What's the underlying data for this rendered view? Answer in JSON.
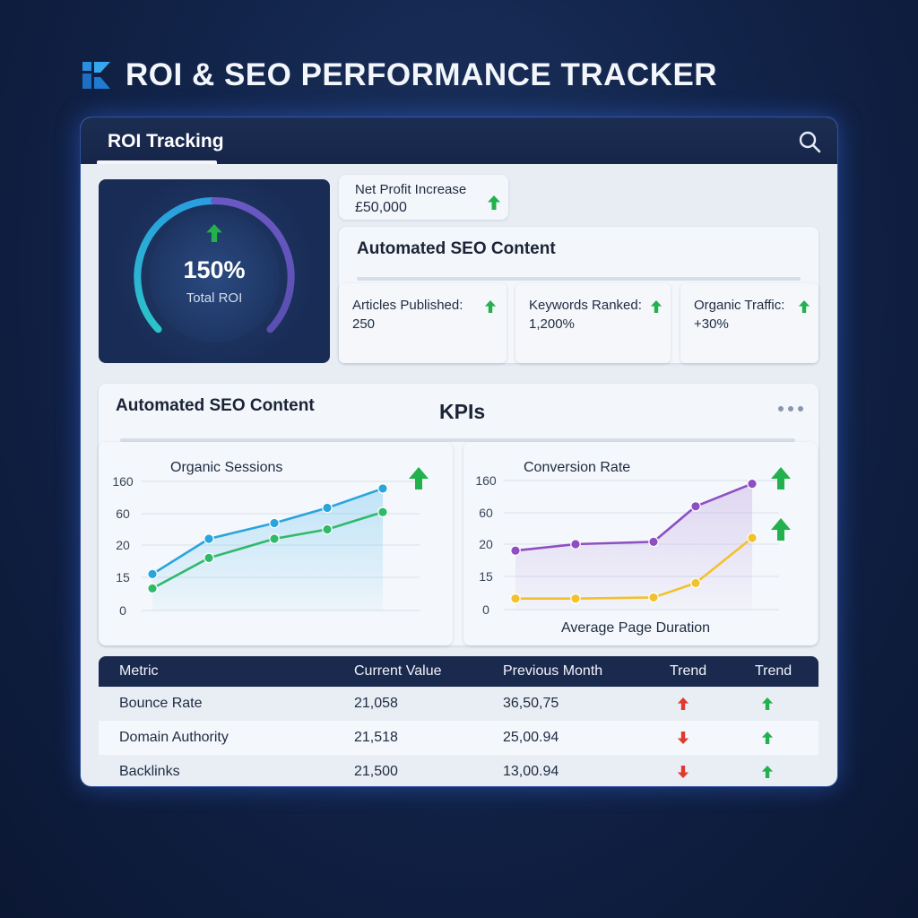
{
  "header": {
    "title": "ROI & SEO PERFORMANCE TRACKER",
    "logo_icon": "logo-icon"
  },
  "window": {
    "tab_label": "ROI Tracking",
    "search_icon": "search-icon"
  },
  "roi_gauge": {
    "value": "150%",
    "label": "Total ROI",
    "trend": "up"
  },
  "net_profit": {
    "label": "Net Profit Increase",
    "value": "£50,000",
    "trend": "up"
  },
  "seo_content": {
    "title": "Automated SEO Content",
    "stats": [
      {
        "label": "Articles Published:",
        "value": "250",
        "trend": "up"
      },
      {
        "label": "Keywords Ranked:",
        "value": "1,200%",
        "trend": "up"
      },
      {
        "label": "Organic Traffic:",
        "value": "+30%",
        "trend": "up"
      }
    ]
  },
  "kpi_panel": {
    "title": "Automated SEO Content",
    "heading": "KPIs",
    "more_icon": "more-icon"
  },
  "chart_data": [
    {
      "type": "line",
      "title": "Organic Sessions",
      "y_tick_labels": [
        "160",
        "60",
        "20",
        "15",
        "0"
      ],
      "series": [
        {
          "values": [
            15.5,
            28,
            48,
            78,
            138
          ],
          "color": "#2aa4dc"
        },
        {
          "values": [
            10,
            18,
            28,
            40,
            65
          ],
          "color": "#2fb96a"
        }
      ],
      "trend_arrows": [
        "up"
      ]
    },
    {
      "type": "line",
      "title": "Conversion Rate",
      "caption": "Average Page Duration",
      "y_tick_labels": [
        "160",
        "60",
        "20",
        "15",
        "0"
      ],
      "series": [
        {
          "values": [
            19,
            20,
            23,
            80,
            150
          ],
          "color": "#8e4fc2"
        },
        {
          "values": [
            5,
            5,
            5.5,
            12,
            28
          ],
          "color": "#f2c12e"
        }
      ],
      "trend_arrows": [
        "up",
        "up"
      ]
    }
  ],
  "table": {
    "headers": [
      "Metric",
      "Current Value",
      "Previous Month",
      "Trend",
      "Trend"
    ],
    "rows": [
      {
        "metric": "Bounce Rate",
        "current": "21,058",
        "previous": "36,50,75",
        "trend1": "up",
        "trend2": "up"
      },
      {
        "metric": "Domain Authority",
        "current": "21,518",
        "previous": "25,00.94",
        "trend1": "down",
        "trend2": "up"
      },
      {
        "metric": "Backlinks",
        "current": "21,500",
        "previous": "13,00.94",
        "trend1": "down",
        "trend2": "up"
      }
    ]
  },
  "colors": {
    "up_arrow": "#22b14c",
    "down_arrow": "#e03a2f",
    "line_blue": "#2aa4dc",
    "line_green": "#2fb96a",
    "line_purple": "#8e4fc2",
    "line_yellow": "#f2c12e"
  }
}
